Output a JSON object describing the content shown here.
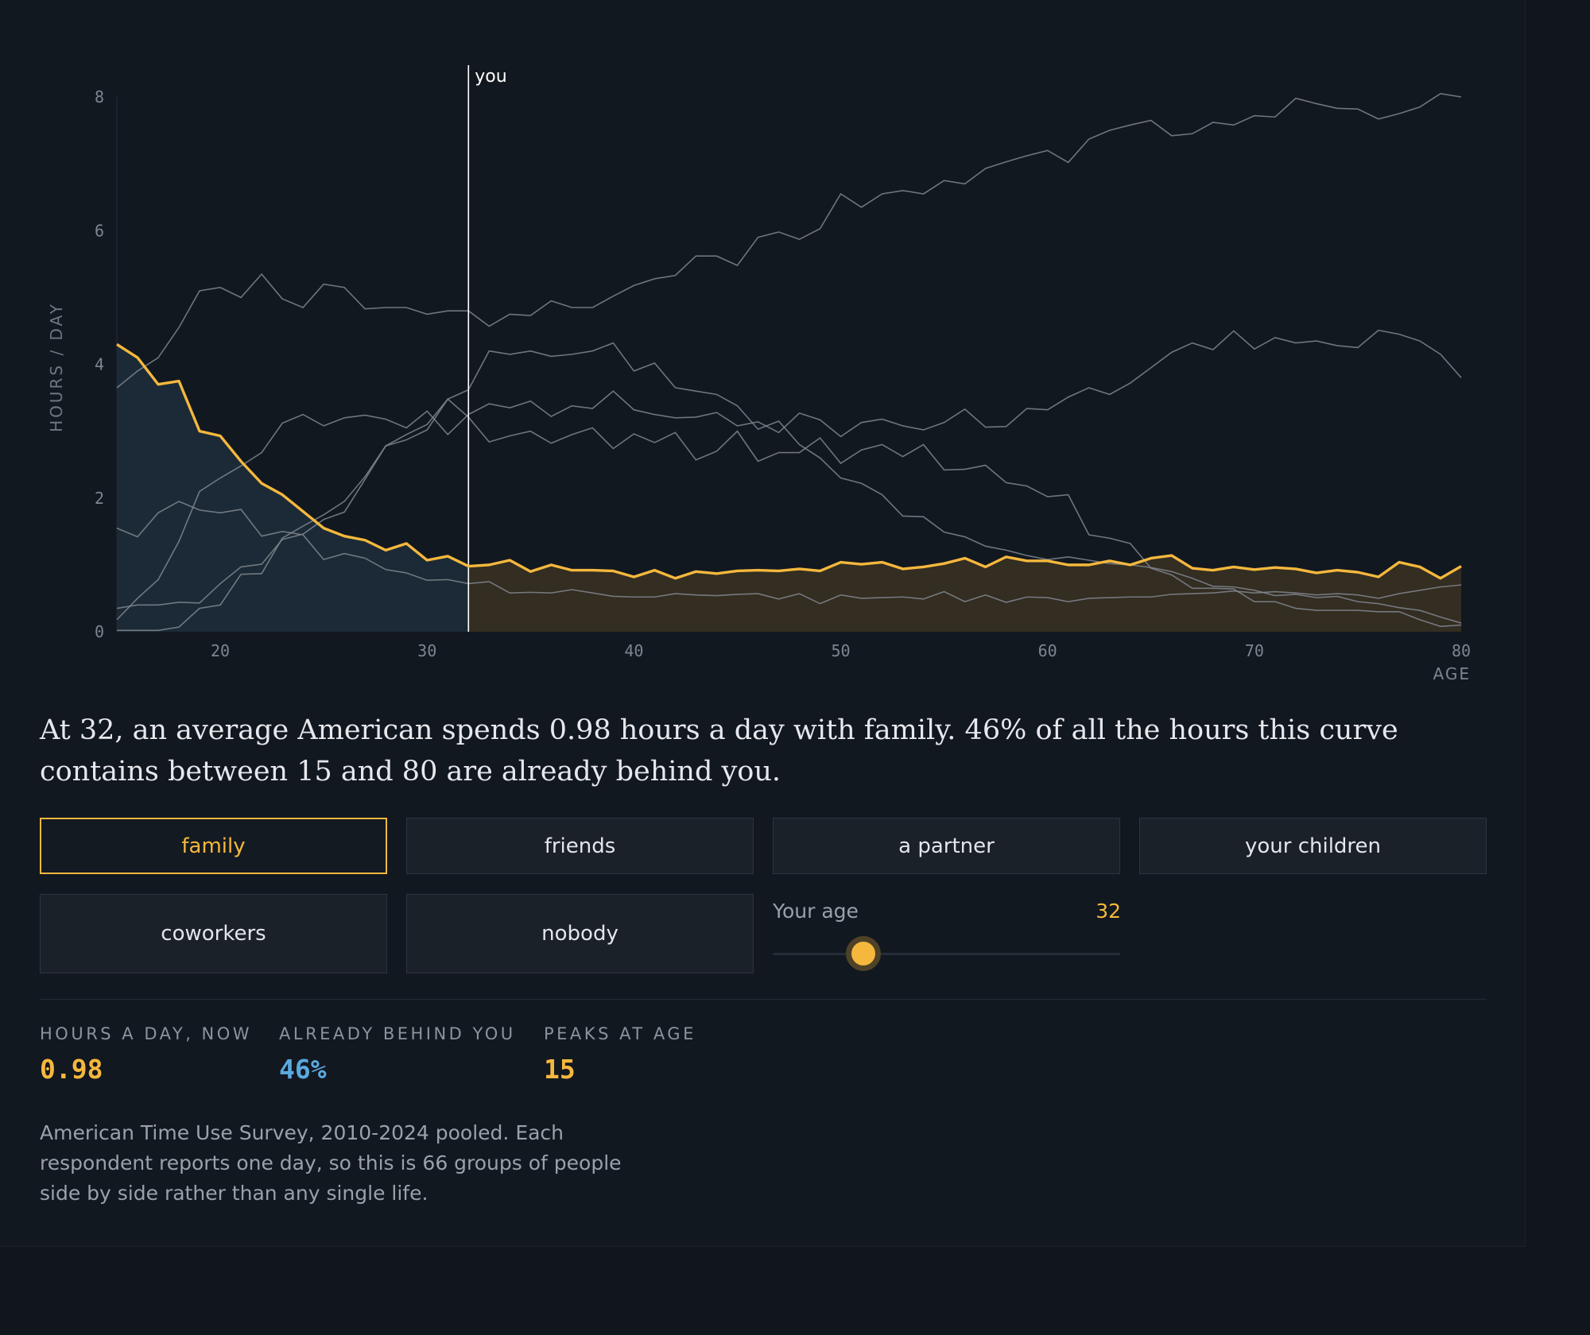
{
  "headline": "At 32, an average American spends 0.98 hours a day with family. 46% of all the hours this curve contains between 15 and 80 are already behind you.",
  "options": [
    "family",
    "friends",
    "a partner",
    "your children",
    "coworkers",
    "nobody"
  ],
  "selected_option": "family",
  "slider": {
    "label": "Your age",
    "value": "32",
    "min": 15,
    "max": 80
  },
  "stats": [
    {
      "label": "HOURS A DAY, NOW",
      "value": "0.98",
      "color": "#f5b83d"
    },
    {
      "label": "ALREADY BEHIND YOU",
      "value": "46%",
      "color": "#5aa9e0"
    },
    {
      "label": "PEAKS AT AGE",
      "value": "15",
      "color": "#f5b83d"
    }
  ],
  "note": "American Time Use Survey, 2010-2024 pooled. Each respondent reports one day, so this is 66 groups of people side by side rather than any single life.",
  "colors": {
    "highlight": "#f5b83d",
    "past_fill": "#1b2a36",
    "future_fill": "#332d22",
    "series": "#80868e",
    "marker": "#ffffff",
    "accent_blue": "#5aa9e0"
  },
  "chart_data": {
    "type": "line",
    "xlabel": "AGE",
    "ylabel": "HOURS / DAY",
    "xlim": [
      15,
      80
    ],
    "ylim": [
      0,
      8
    ],
    "xticks": [
      20,
      30,
      40,
      50,
      60,
      70,
      80
    ],
    "yticks": [
      0,
      2,
      4,
      6,
      8
    ],
    "marker": {
      "x": 32,
      "label": "you"
    },
    "highlight_series": "family",
    "x": [
      15,
      16,
      17,
      18,
      19,
      20,
      21,
      22,
      23,
      24,
      25,
      26,
      27,
      28,
      29,
      30,
      31,
      32,
      33,
      34,
      35,
      36,
      37,
      38,
      39,
      40,
      41,
      42,
      43,
      44,
      45,
      46,
      47,
      48,
      49,
      50,
      51,
      52,
      53,
      54,
      55,
      56,
      57,
      58,
      59,
      60,
      61,
      62,
      63,
      64,
      65,
      66,
      67,
      68,
      69,
      70,
      71,
      72,
      73,
      74,
      75,
      76,
      77,
      78,
      79,
      80
    ],
    "series": [
      {
        "name": "family",
        "values": [
          4.3,
          4.1,
          3.7,
          3.75,
          3.0,
          2.93,
          2.55,
          2.22,
          2.05,
          1.8,
          1.55,
          1.43,
          1.37,
          1.22,
          1.32,
          1.07,
          1.13,
          0.98,
          1.0,
          1.07,
          0.9,
          1.0,
          0.92,
          0.92,
          0.91,
          0.82,
          0.92,
          0.8,
          0.9,
          0.87,
          0.91,
          0.92,
          0.91,
          0.94,
          0.91,
          1.04,
          1.01,
          1.04,
          0.94,
          0.97,
          1.02,
          1.1,
          0.97,
          1.12,
          1.06,
          1.06,
          1.0,
          1.0,
          1.06,
          1.0,
          1.1,
          1.14,
          0.95,
          0.92,
          0.97,
          0.93,
          0.96,
          0.94,
          0.88,
          0.92,
          0.89,
          0.82,
          1.04,
          0.97,
          0.8,
          0.98
        ]
      },
      {
        "values": [
          3.65,
          3.9,
          4.1,
          4.55,
          5.1,
          5.15,
          5.0,
          5.35,
          4.98,
          4.85,
          5.2,
          5.15,
          4.83,
          4.85,
          4.85,
          4.75,
          4.8,
          4.8,
          4.57,
          4.75,
          4.73,
          4.95,
          4.85,
          4.85,
          5.02,
          5.18,
          5.28,
          5.33,
          5.62,
          5.62,
          5.48,
          5.9,
          5.98,
          5.87,
          6.03,
          6.55,
          6.35,
          6.55,
          6.6,
          6.55,
          6.75,
          6.7,
          6.93,
          7.03,
          7.12,
          7.2,
          7.02,
          7.37,
          7.5,
          7.58,
          7.65,
          7.42,
          7.45,
          7.62,
          7.58,
          7.72,
          7.7,
          7.98,
          7.9,
          7.83,
          7.82,
          7.67,
          7.75,
          7.85,
          8.05,
          8.0
        ]
      },
      {
        "values": [
          1.55,
          1.42,
          1.78,
          1.95,
          1.82,
          1.78,
          1.83,
          1.43,
          1.5,
          1.45,
          1.08,
          1.17,
          1.1,
          0.93,
          0.88,
          0.77,
          0.78,
          0.72,
          0.75,
          0.58,
          0.59,
          0.58,
          0.63,
          0.58,
          0.53,
          0.52,
          0.52,
          0.57,
          0.55,
          0.54,
          0.56,
          0.57,
          0.49,
          0.57,
          0.42,
          0.55,
          0.5,
          0.51,
          0.52,
          0.49,
          0.6,
          0.45,
          0.55,
          0.44,
          0.52,
          0.51,
          0.45,
          0.5,
          0.51,
          0.52,
          0.52,
          0.56,
          0.57,
          0.58,
          0.61,
          0.58,
          0.6,
          0.58,
          0.55,
          0.57,
          0.55,
          0.5,
          0.57,
          0.62,
          0.67,
          0.7
        ]
      },
      {
        "values": [
          0.18,
          0.5,
          0.78,
          1.35,
          2.1,
          2.3,
          2.48,
          2.68,
          3.12,
          3.25,
          3.08,
          3.2,
          3.24,
          3.18,
          3.05,
          3.3,
          2.95,
          3.25,
          3.41,
          3.35,
          3.45,
          3.22,
          3.38,
          3.34,
          3.6,
          3.32,
          3.25,
          3.2,
          3.21,
          3.28,
          3.08,
          3.14,
          2.98,
          3.27,
          3.17,
          2.92,
          3.13,
          3.18,
          3.08,
          3.02,
          3.13,
          3.33,
          3.06,
          3.07,
          3.34,
          3.32,
          3.51,
          3.65,
          3.55,
          3.72,
          3.95,
          4.18,
          4.32,
          4.22,
          4.5,
          4.23,
          4.4,
          4.32,
          4.35,
          4.28,
          4.25,
          4.51,
          4.45,
          4.35,
          4.15,
          3.8
        ]
      },
      {
        "values": [
          0.35,
          0.4,
          0.4,
          0.44,
          0.43,
          0.72,
          0.97,
          1.01,
          1.38,
          1.46,
          1.68,
          1.79,
          2.28,
          2.78,
          2.95,
          3.1,
          3.48,
          3.62,
          4.2,
          4.15,
          4.2,
          4.12,
          4.15,
          4.2,
          4.32,
          3.9,
          4.02,
          3.65,
          3.6,
          3.55,
          3.38,
          3.03,
          3.15,
          2.8,
          2.6,
          2.3,
          2.22,
          2.05,
          1.73,
          1.72,
          1.49,
          1.42,
          1.28,
          1.22,
          1.14,
          1.08,
          1.12,
          1.07,
          1.02,
          1.0,
          0.96,
          0.9,
          0.8,
          0.68,
          0.67,
          0.62,
          0.54,
          0.56,
          0.51,
          0.53,
          0.45,
          0.42,
          0.36,
          0.32,
          0.22,
          0.13
        ]
      },
      {
        "values": [
          0.02,
          0.02,
          0.02,
          0.07,
          0.35,
          0.4,
          0.86,
          0.87,
          1.4,
          1.58,
          1.75,
          1.95,
          2.32,
          2.78,
          2.87,
          3.02,
          3.48,
          3.21,
          2.84,
          2.93,
          3.0,
          2.82,
          2.95,
          3.05,
          2.74,
          2.96,
          2.83,
          2.98,
          2.57,
          2.7,
          3.0,
          2.55,
          2.68,
          2.68,
          2.9,
          2.52,
          2.72,
          2.8,
          2.62,
          2.8,
          2.42,
          2.43,
          2.49,
          2.23,
          2.18,
          2.02,
          2.05,
          1.45,
          1.4,
          1.32,
          0.95,
          0.85,
          0.65,
          0.65,
          0.64,
          0.45,
          0.45,
          0.35,
          0.32,
          0.32,
          0.32,
          0.3,
          0.3,
          0.18,
          0.08,
          0.1
        ]
      }
    ]
  }
}
